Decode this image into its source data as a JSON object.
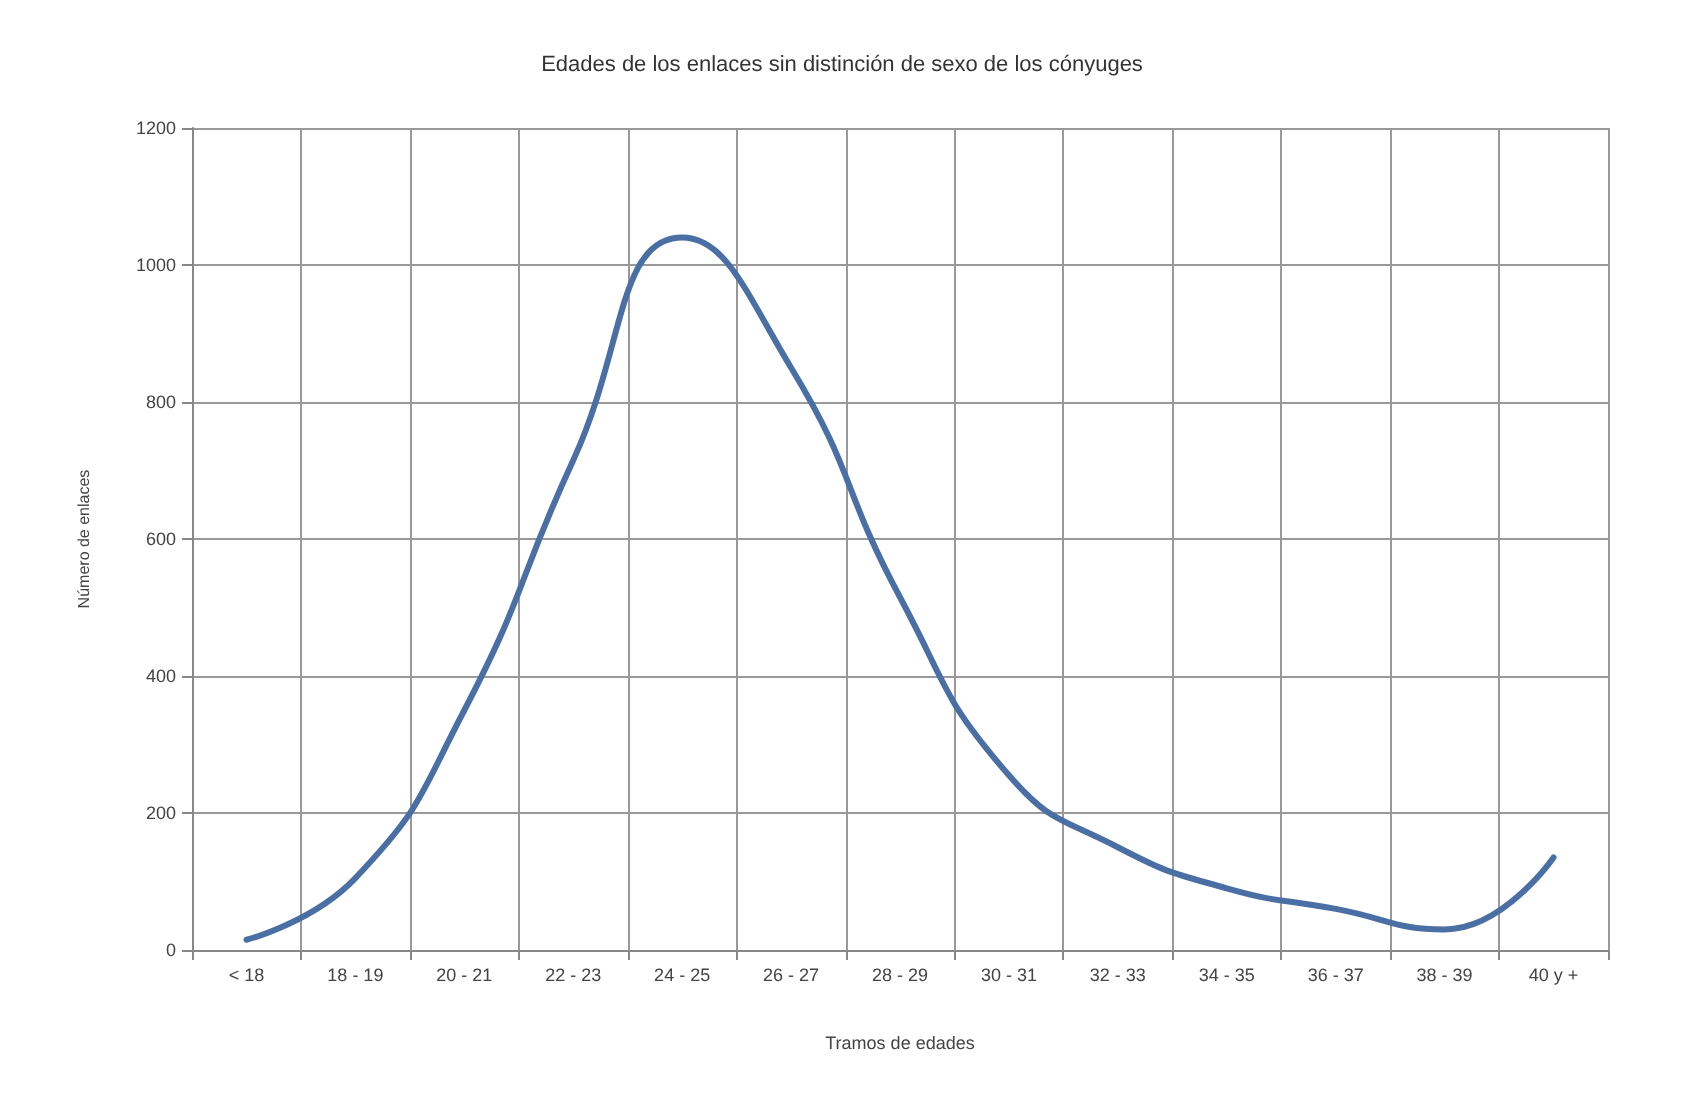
{
  "chart_data": {
    "type": "line",
    "title": "Edades de los enlaces sin distinción de sexo de los cónyuges",
    "xlabel": "Tramos de edades",
    "ylabel": "Número de enlaces",
    "categories": [
      "< 18",
      "18 - 19",
      "20 - 21",
      "22 - 23",
      "24 - 25",
      "26 - 27",
      "28 - 29",
      "30 - 31",
      "32 - 33",
      "34 - 35",
      "36 - 37",
      "38 - 39",
      "40 y +"
    ],
    "series": [
      {
        "color": "#4a6fa5",
        "values": [
          15,
          105,
          350,
          715,
          1040,
          850,
          515,
          255,
          150,
          90,
          60,
          30,
          135
        ]
      }
    ],
    "ylim": [
      0,
      1200
    ],
    "yticks": [
      0,
      200,
      400,
      600,
      800,
      1000,
      1200
    ],
    "grid": true,
    "marker": "none",
    "line_style": "solid"
  }
}
